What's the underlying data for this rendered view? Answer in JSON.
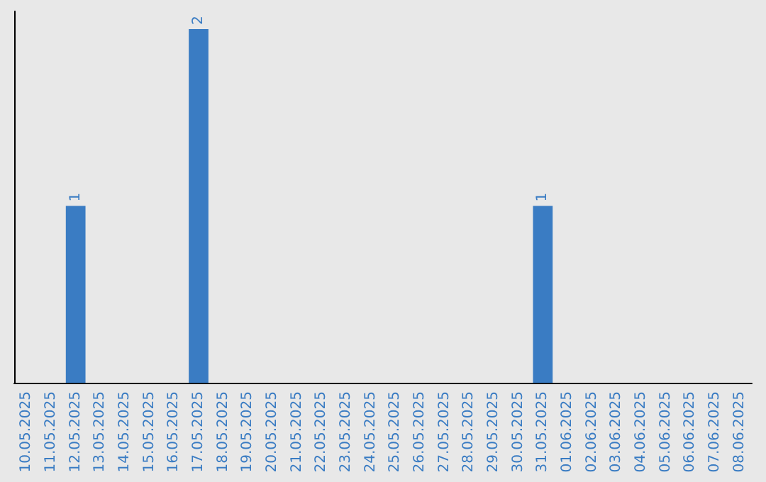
{
  "chart_data": {
    "type": "bar",
    "categories": [
      "10.05.2025",
      "11.05.2025",
      "12.05.2025",
      "13.05.2025",
      "14.05.2025",
      "15.05.2025",
      "16.05.2025",
      "17.05.2025",
      "18.05.2025",
      "19.05.2025",
      "20.05.2025",
      "21.05.2025",
      "22.05.2025",
      "23.05.2025",
      "24.05.2025",
      "25.05.2025",
      "26.05.2025",
      "27.05.2025",
      "28.05.2025",
      "29.05.2025",
      "30.05.2025",
      "31.05.2025",
      "01.06.2025",
      "02.06.2025",
      "03.06.2025",
      "04.06.2025",
      "05.06.2025",
      "06.06.2025",
      "07.06.2025",
      "08.06.2025"
    ],
    "values": [
      0,
      0,
      1,
      0,
      0,
      0,
      0,
      2,
      0,
      0,
      0,
      0,
      0,
      0,
      0,
      0,
      0,
      0,
      0,
      0,
      0,
      1,
      0,
      0,
      0,
      0,
      0,
      0,
      0,
      0
    ],
    "value_labels": [
      null,
      null,
      "1",
      null,
      null,
      null,
      null,
      "2",
      null,
      null,
      null,
      null,
      null,
      null,
      null,
      null,
      null,
      null,
      null,
      null,
      null,
      "1",
      null,
      null,
      null,
      null,
      null,
      null,
      null,
      null
    ],
    "color": "#3a7cc3",
    "tick_labels": "x"
  }
}
